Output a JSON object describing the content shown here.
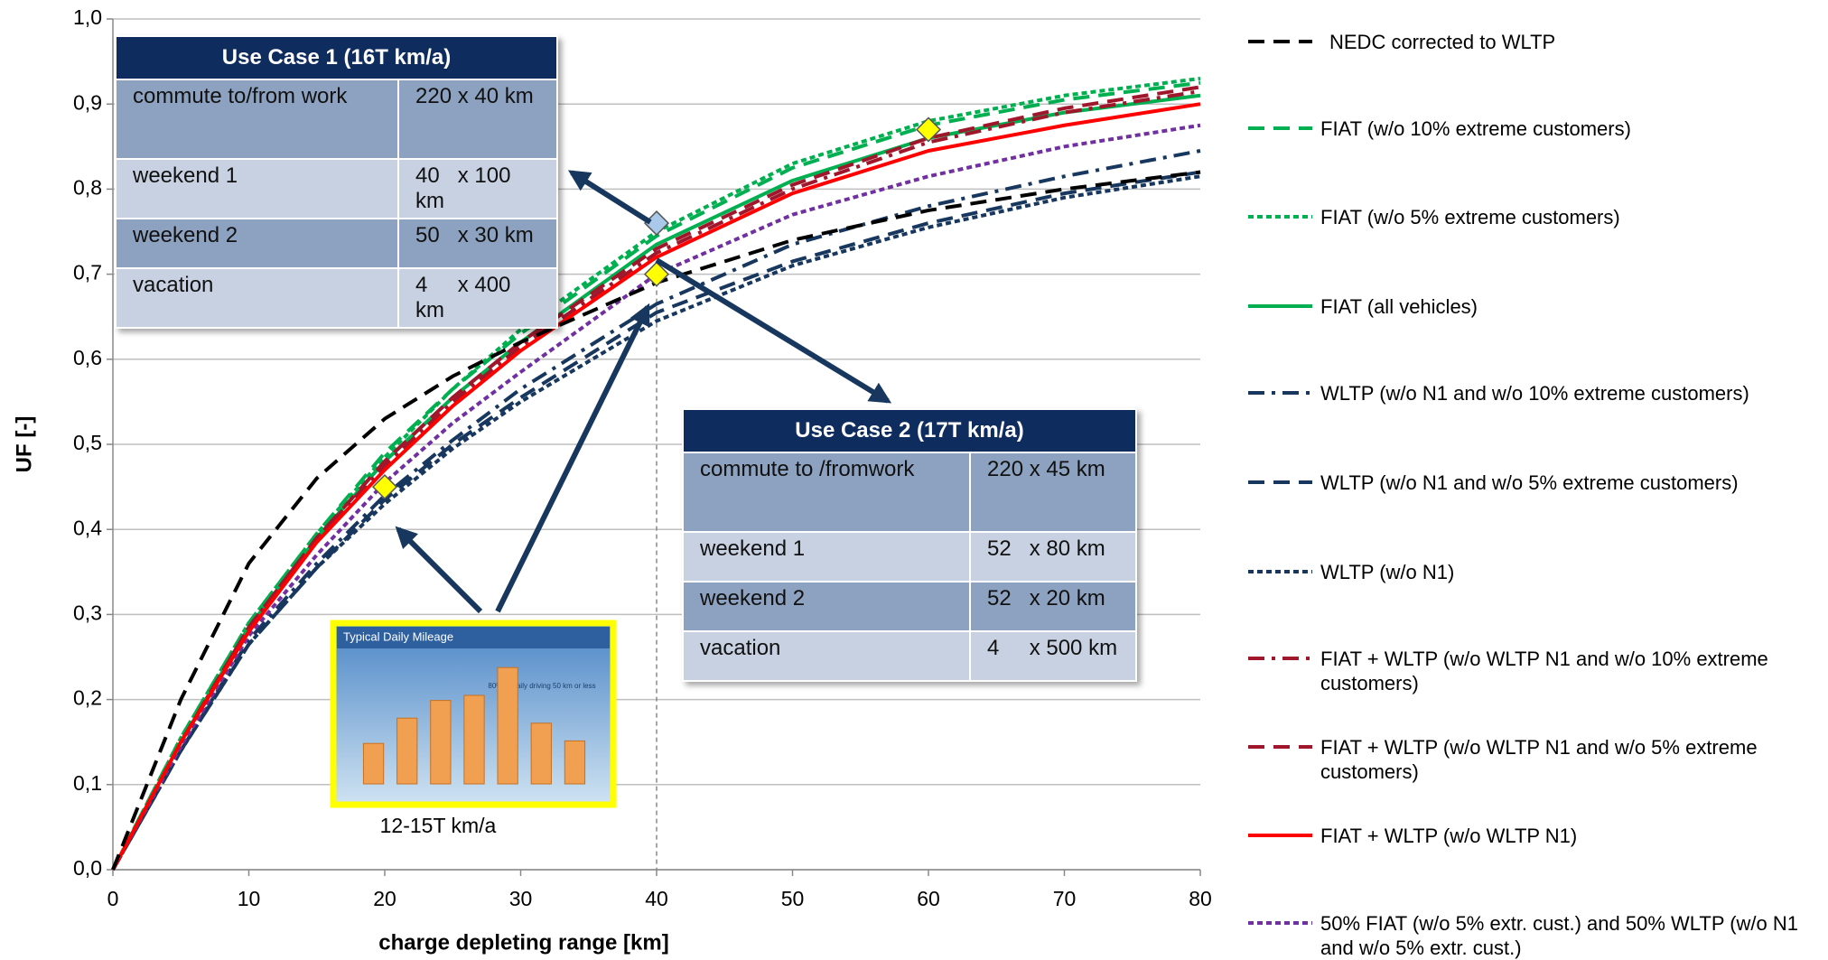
{
  "chart_data": {
    "type": "line",
    "xlabel": "charge depleting range [km]",
    "ylabel": "UF [-]",
    "xlim": [
      0,
      80
    ],
    "ylim": [
      0,
      1
    ],
    "xticks": [
      0,
      10,
      20,
      30,
      40,
      50,
      60,
      70,
      80
    ],
    "yticks": [
      {
        "value": 0,
        "label": "0,0"
      },
      {
        "value": 0.1,
        "label": "0,1"
      },
      {
        "value": 0.2,
        "label": "0,2"
      },
      {
        "value": 0.3,
        "label": "0,3"
      },
      {
        "value": 0.4,
        "label": "0,4"
      },
      {
        "value": 0.5,
        "label": "0,5"
      },
      {
        "value": 0.6,
        "label": "0,6"
      },
      {
        "value": 0.7,
        "label": "0,7"
      },
      {
        "value": 0.8,
        "label": "0,8"
      },
      {
        "value": 0.9,
        "label": "0,9"
      },
      {
        "value": 1,
        "label": "1,0"
      }
    ],
    "grid": true,
    "legend": "right",
    "x": [
      0,
      5,
      10,
      15,
      20,
      25,
      30,
      40,
      50,
      60,
      70,
      80
    ],
    "series": [
      {
        "name": "NEDC corrected to WLTP",
        "color": "#000000",
        "style": "dashed",
        "values": [
          0,
          0.2,
          0.36,
          0.46,
          0.53,
          0.58,
          0.62,
          0.69,
          0.74,
          0.775,
          0.8,
          0.82
        ]
      },
      {
        "name": "FIAT (w/o 10% extreme customers)",
        "color": "#00b050",
        "style": "dashed",
        "values": [
          0,
          0.155,
          0.29,
          0.395,
          0.49,
          0.565,
          0.63,
          0.745,
          0.825,
          0.875,
          0.905,
          0.925
        ]
      },
      {
        "name": "FIAT (w/o 5% extreme customers)",
        "color": "#00b050",
        "style": "dotted",
        "values": [
          0,
          0.155,
          0.29,
          0.395,
          0.485,
          0.565,
          0.635,
          0.75,
          0.83,
          0.88,
          0.91,
          0.93
        ]
      },
      {
        "name": "FIAT (all vehicles)",
        "color": "#00b050",
        "style": "solid",
        "values": [
          0,
          0.15,
          0.285,
          0.39,
          0.48,
          0.555,
          0.62,
          0.735,
          0.81,
          0.86,
          0.89,
          0.91
        ]
      },
      {
        "name": "WLTP (w/o N1 and w/o 10% extreme customers)",
        "color": "#17375e",
        "style": "dashdot",
        "values": [
          0,
          0.14,
          0.27,
          0.36,
          0.44,
          0.505,
          0.565,
          0.665,
          0.735,
          0.78,
          0.815,
          0.845
        ]
      },
      {
        "name": "WLTP (w/o N1 and w/o 5% extreme customers)",
        "color": "#17375e",
        "style": "dashed",
        "values": [
          0,
          0.14,
          0.265,
          0.355,
          0.435,
          0.5,
          0.555,
          0.655,
          0.715,
          0.76,
          0.795,
          0.82
        ]
      },
      {
        "name": "WLTP (w/o N1)",
        "color": "#17375e",
        "style": "dotted",
        "values": [
          0,
          0.14,
          0.265,
          0.355,
          0.43,
          0.495,
          0.55,
          0.645,
          0.71,
          0.755,
          0.79,
          0.815
        ]
      },
      {
        "name": "FIAT + WLTP (w/o WLTP N1 and w/o 10% extreme customers)",
        "color": "#a0172c",
        "style": "dashdot",
        "values": [
          0,
          0.15,
          0.285,
          0.39,
          0.475,
          0.55,
          0.615,
          0.725,
          0.8,
          0.855,
          0.89,
          0.915
        ]
      },
      {
        "name": "FIAT + WLTP (w/o WLTP N1 and w/o 5% extreme customers)",
        "color": "#a0172c",
        "style": "dashed",
        "values": [
          0,
          0.15,
          0.285,
          0.39,
          0.48,
          0.555,
          0.62,
          0.73,
          0.805,
          0.86,
          0.895,
          0.92
        ]
      },
      {
        "name": "FIAT + WLTP (w/o WLTP N1)",
        "color": "#ff0000",
        "style": "solid",
        "values": [
          0,
          0.15,
          0.28,
          0.385,
          0.47,
          0.545,
          0.61,
          0.72,
          0.795,
          0.845,
          0.875,
          0.9
        ]
      },
      {
        "name": "50% FIAT (w/o 5% extr. cust.) and  50% WLTP (w/o N1 and w/o 5% extr. cust.)",
        "color": "#7030a0",
        "style": "dotted",
        "values": [
          0,
          0.145,
          0.275,
          0.37,
          0.455,
          0.525,
          0.585,
          0.7,
          0.77,
          0.815,
          0.85,
          0.875
        ]
      }
    ],
    "points": {
      "x": [
        20,
        40,
        60
      ],
      "values": [
        0.45,
        0.7,
        0.87
      ],
      "color": "#ffff00"
    },
    "highlight": {
      "x": [
        40
      ],
      "values": [
        0.76
      ],
      "color": "#a9c8ea"
    },
    "tables": [
      {
        "title": "Use Case 1 (16T km/a)",
        "rows": [
          [
            "commute to/from work",
            "220 x 40 km"
          ],
          [
            "weekend 1",
            "40   x 100 km"
          ],
          [
            "weekend 2",
            "50   x 30 km"
          ],
          [
            "vacation",
            "4     x 400 km"
          ]
        ]
      },
      {
        "title": "Use Case 2 (17T km/a)",
        "rows": [
          [
            "commute to /fromwork",
            "220 x 45 km"
          ],
          [
            "weekend 1",
            "52   x 80 km"
          ],
          [
            "weekend 2",
            "52   x 20 km"
          ],
          [
            "vacation",
            "4     x 500 km"
          ]
        ]
      }
    ],
    "inset": {
      "title": "Typical Daily Mileage",
      "note": "80% of daily driving 50 km or less",
      "caption": "12-15T km/a",
      "ylim": [
        0,
        25
      ],
      "values": [
        8,
        13,
        16.5,
        17.5,
        23,
        12,
        8.5
      ]
    }
  }
}
